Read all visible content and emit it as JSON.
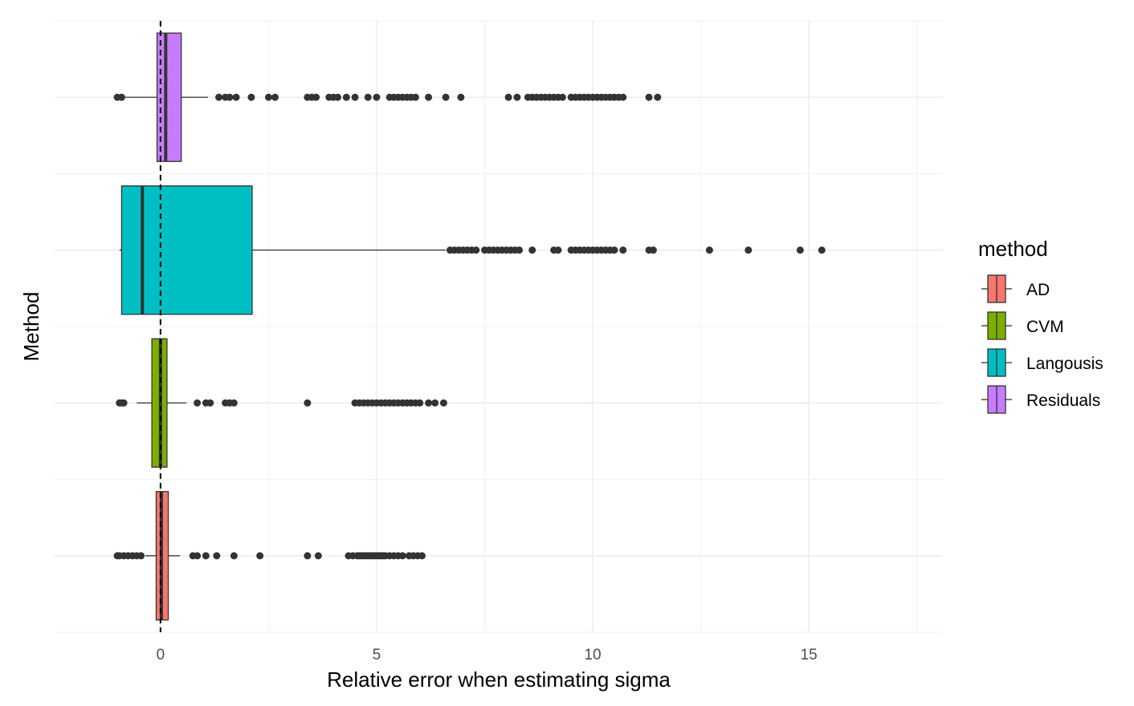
{
  "chart_data": {
    "type": "boxplot",
    "orientation": "horizontal",
    "xlabel": "Relative error when estimating sigma",
    "ylabel": "Method",
    "xlim": [
      -2.45,
      18.1
    ],
    "x_ticks": [
      0,
      5,
      10,
      15
    ],
    "grid": true,
    "reference_line": {
      "x": 0,
      "style": "dashed"
    },
    "legend": {
      "title": "method",
      "position": "right"
    },
    "series": [
      {
        "name": "AD",
        "color": "#F8766D",
        "stats": {
          "whisker_low": -0.35,
          "q1": -0.1,
          "median": 0.02,
          "q3": 0.18,
          "whisker_high": 0.45
        },
        "outliers": [
          -1.0,
          -0.95,
          -0.85,
          -0.75,
          -0.65,
          -0.55,
          -0.45,
          0.75,
          0.85,
          1.05,
          1.3,
          1.7,
          2.3,
          3.4,
          3.65,
          4.35,
          4.45,
          4.55,
          4.6,
          4.65,
          4.7,
          4.75,
          4.8,
          4.85,
          4.9,
          4.95,
          5.0,
          5.05,
          5.1,
          5.15,
          5.2,
          5.3,
          5.4,
          5.5,
          5.6,
          5.75,
          5.85,
          5.95,
          6.05
        ]
      },
      {
        "name": "CVM",
        "color": "#7CAE00",
        "stats": {
          "whisker_low": -0.55,
          "q1": -0.2,
          "median": 0.0,
          "q3": 0.15,
          "whisker_high": 0.6
        },
        "outliers": [
          -0.95,
          -0.9,
          -0.85,
          0.85,
          1.05,
          1.15,
          1.5,
          1.6,
          1.7,
          3.4,
          4.5,
          4.6,
          4.7,
          4.8,
          4.9,
          5.0,
          5.1,
          5.2,
          5.3,
          5.4,
          5.5,
          5.6,
          5.7,
          5.8,
          5.9,
          6.0,
          6.2,
          6.35,
          6.55
        ]
      },
      {
        "name": "Langousis",
        "color": "#00BFC4",
        "stats": {
          "whisker_low": -0.95,
          "q1": -0.9,
          "median": -0.42,
          "q3": 2.12,
          "whisker_high": 6.6
        },
        "outliers": [
          6.7,
          6.8,
          6.9,
          7.0,
          7.1,
          7.2,
          7.3,
          7.5,
          7.6,
          7.7,
          7.8,
          7.9,
          8.0,
          8.1,
          8.2,
          8.3,
          8.6,
          9.1,
          9.2,
          9.5,
          9.6,
          9.7,
          9.8,
          9.9,
          10.0,
          10.1,
          10.2,
          10.3,
          10.4,
          10.5,
          10.7,
          11.3,
          11.4,
          12.7,
          13.6,
          14.8,
          15.3
        ]
      },
      {
        "name": "Residuals",
        "color": "#C77CFF",
        "stats": {
          "whisker_low": -0.9,
          "q1": -0.08,
          "median": 0.12,
          "q3": 0.48,
          "whisker_high": 1.1
        },
        "outliers": [
          -1.0,
          -0.9,
          1.35,
          1.5,
          1.6,
          1.75,
          2.1,
          2.5,
          2.65,
          3.4,
          3.5,
          3.6,
          3.9,
          4.0,
          4.1,
          4.3,
          4.5,
          4.8,
          5.0,
          5.3,
          5.4,
          5.5,
          5.6,
          5.7,
          5.8,
          5.9,
          6.2,
          6.6,
          6.95,
          8.05,
          8.25,
          8.5,
          8.6,
          8.7,
          8.8,
          8.9,
          9.0,
          9.1,
          9.2,
          9.3,
          9.5,
          9.6,
          9.7,
          9.8,
          9.9,
          10.0,
          10.1,
          10.2,
          10.3,
          10.4,
          10.5,
          10.6,
          10.7,
          11.3,
          11.5
        ]
      }
    ]
  }
}
